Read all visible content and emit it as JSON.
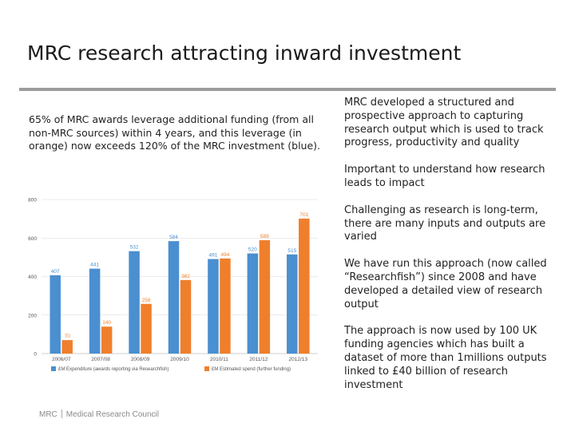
{
  "slide": {
    "title": "MRC research attracting inward investment",
    "intro": "65% of MRC awards leverage additional funding (from all non-MRC sources) within 4 years, and this leverage (in orange) now exceeds 120% of the MRC investment (blue).",
    "bullets": [
      "MRC developed a structured and prospective approach to capturing research output which is used to track progress, productivity and quality",
      "Important to understand how research leads to impact",
      "Challenging as research is long-term, there are many inputs and outputs are varied",
      "We have run this approach (now called “Researchfish”) since 2008 and have developed a detailed view of research output",
      "The approach is now used by 100 UK funding agencies which has built a dataset of more than 1millions outputs linked to £40 billion of research investment"
    ],
    "footer": {
      "org_short": "MRC",
      "org_full": "Medical Research Council"
    }
  },
  "colors": {
    "blue": "#4a8fd0",
    "orange": "#f07f2c",
    "rule": "#9d9d9d"
  },
  "chart_data": {
    "type": "bar",
    "categories": [
      "2006/07",
      "2007/08",
      "2008/09",
      "2009/10",
      "2010/11",
      "2011/12",
      "2012/13"
    ],
    "series": [
      {
        "name": "£M Expenditure (awards reporting via Researchfish)",
        "color": "#4a8fd0",
        "values": [
          407,
          441,
          532,
          584,
          491,
          520,
          515
        ]
      },
      {
        "name": "£M Estimated spend (further funding)",
        "color": "#f07f2c",
        "values": [
          70,
          140,
          258,
          382,
          494,
          589,
          701
        ]
      }
    ],
    "ylim": [
      0,
      800
    ],
    "yticks": [
      "0",
      "200",
      "400",
      "600",
      "800"
    ],
    "legend": "bottom",
    "grid": true
  }
}
